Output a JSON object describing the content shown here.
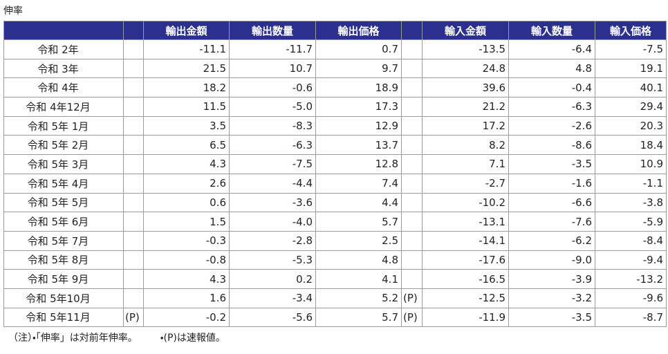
{
  "caption": "伸率",
  "table": {
    "headers": [
      "輸出金額",
      "輸出数量",
      "輸出価格",
      "輸入金額",
      "輸入数量",
      "輸入価格"
    ],
    "rows": [
      {
        "label": "令和 2年",
        "export": [
          "-11.1",
          "-11.7",
          "0.7"
        ],
        "import": [
          "-13.5",
          "-6.4",
          "-7.5"
        ]
      },
      {
        "label": "令和 3年",
        "export": [
          "21.5",
          "10.7",
          "9.7"
        ],
        "import": [
          "24.8",
          "4.8",
          "19.1"
        ]
      },
      {
        "label": "令和 4年",
        "export": [
          "18.2",
          "-0.6",
          "18.9"
        ],
        "import": [
          "39.6",
          "-0.4",
          "40.1"
        ]
      },
      {
        "label": "令和 4年12月",
        "export": [
          "11.5",
          "-5.0",
          "17.3"
        ],
        "import": [
          "21.2",
          "-6.3",
          "29.4"
        ]
      },
      {
        "label": "令和 5年 1月",
        "export": [
          "3.5",
          "-8.3",
          "12.9"
        ],
        "import": [
          "17.2",
          "-2.6",
          "20.3"
        ]
      },
      {
        "label": "令和 5年 2月",
        "export": [
          "6.5",
          "-6.3",
          "13.7"
        ],
        "import": [
          "8.2",
          "-8.6",
          "18.4"
        ]
      },
      {
        "label": "令和 5年 3月",
        "export": [
          "4.3",
          "-7.5",
          "12.8"
        ],
        "import": [
          "7.1",
          "-3.5",
          "10.9"
        ]
      },
      {
        "label": "令和 5年 4月",
        "export": [
          "2.6",
          "-4.4",
          "7.4"
        ],
        "import": [
          "-2.7",
          "-1.6",
          "-1.1"
        ]
      },
      {
        "label": "令和 5年 5月",
        "export": [
          "0.6",
          "-3.6",
          "4.4"
        ],
        "import": [
          "-10.2",
          "-6.6",
          "-3.8"
        ]
      },
      {
        "label": "令和 5年 6月",
        "export": [
          "1.5",
          "-4.0",
          "5.7"
        ],
        "import": [
          "-13.1",
          "-7.6",
          "-5.9"
        ]
      },
      {
        "label": "令和 5年 7月",
        "export": [
          "-0.3",
          "-2.8",
          "2.5"
        ],
        "import": [
          "-14.1",
          "-6.2",
          "-8.4"
        ]
      },
      {
        "label": "令和 5年 8月",
        "export": [
          "-0.8",
          "-5.3",
          "4.8"
        ],
        "import": [
          "-17.6",
          "-9.0",
          "-9.4"
        ]
      },
      {
        "label": "令和 5年 9月",
        "export": [
          "4.3",
          "0.2",
          "4.1"
        ],
        "import": [
          "-16.5",
          "-3.9",
          "-13.2"
        ]
      },
      {
        "label": "令和 5年10月",
        "export": [
          "1.6",
          "-3.4",
          "5.2"
        ],
        "import_mark": "(P)",
        "import": [
          "-12.5",
          "-3.2",
          "-9.6"
        ]
      },
      {
        "label": "令和 5年11月",
        "export_mark": "(P)",
        "export": [
          "-0.2",
          "-5.6",
          "5.7"
        ],
        "import_mark": "(P)",
        "import": [
          "-11.9",
          "-3.5",
          "-8.7"
        ]
      }
    ]
  },
  "note": [
    "（注）・「伸率」は対前年伸率。",
    "・(P)は速報値。"
  ]
}
